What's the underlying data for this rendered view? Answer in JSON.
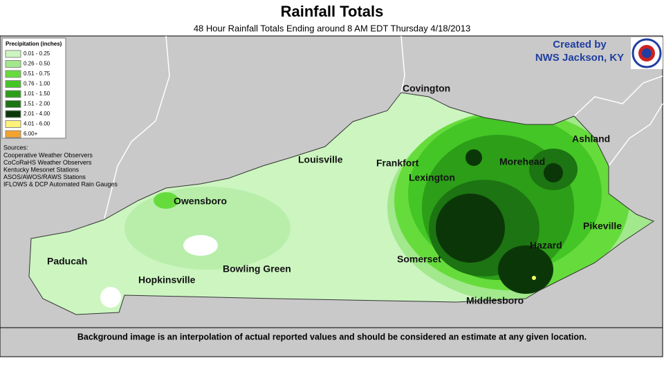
{
  "header": {
    "title": "Rainfall Totals",
    "subtitle": "48 Hour Rainfall Totals Ending around 8 AM EDT Thursday 4/18/2013"
  },
  "credit": {
    "line1": "Created by",
    "line2": "NWS Jackson, KY"
  },
  "legend": {
    "title": "Precipitation (inches)",
    "items": [
      {
        "label": "0.01 - 0.25",
        "color": "#ccf5c0"
      },
      {
        "label": "0.26 - 0.50",
        "color": "#a2e88c"
      },
      {
        "label": "0.51 - 0.75",
        "color": "#66dc3c"
      },
      {
        "label": "0.76 - 1.00",
        "color": "#44c626"
      },
      {
        "label": "1.01 - 1.50",
        "color": "#2c9e18"
      },
      {
        "label": "1.51 - 2.00",
        "color": "#1d7412"
      },
      {
        "label": "2.01 - 4.00",
        "color": "#0b3708"
      },
      {
        "label": "4.01 - 6.00",
        "color": "#fff27a"
      },
      {
        "label": "6.00+",
        "color": "#f3a32e"
      }
    ]
  },
  "sources": {
    "title": "Sources:",
    "lines": [
      "Cooperative Weather Observers",
      "CoCoRaHS Weather Observers",
      "Kentucky Mesonet Stations",
      "ASOS/AWOS/RAWS Stations",
      "IFLOWS & DCP Automated Rain Gauges"
    ]
  },
  "cities": [
    "Covington",
    "Ashland",
    "Louisville",
    "Frankfort",
    "Morehead",
    "Lexington",
    "Owensboro",
    "Pikeville",
    "Hazard",
    "Somerset",
    "Paducah",
    "Hopkinsville",
    "Bowling Green",
    "Middlesboro"
  ],
  "footnote": "Background image is an interpolation of actual reported values and should be considered an estimate at any given location."
}
